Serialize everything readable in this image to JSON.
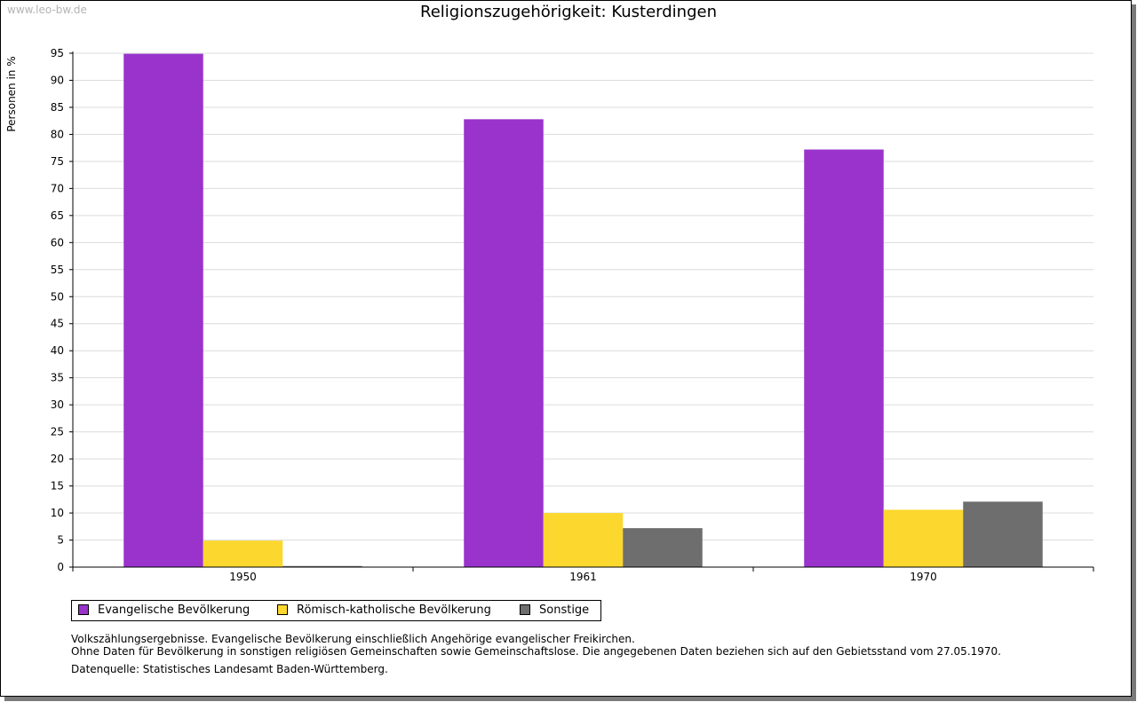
{
  "watermark": "www.leo-bw.de",
  "chart_data": {
    "type": "bar",
    "title": "Religionszugehörigkeit: Kusterdingen",
    "xlabel": "",
    "ylabel": "Personen in %",
    "ylim": [
      0,
      95
    ],
    "ytick_step": 5,
    "grid": true,
    "legend_position": "bottom-left",
    "categories": [
      "1950",
      "1961",
      "1970"
    ],
    "series": [
      {
        "name": "Evangelische Bevölkerung",
        "color": "#9933cc",
        "values": [
          94.9,
          82.8,
          77.2
        ]
      },
      {
        "name": "Römisch-katholische Bevölkerung",
        "color": "#fcd72e",
        "values": [
          4.9,
          10.0,
          10.6
        ]
      },
      {
        "name": "Sonstige",
        "color": "#6e6e6e",
        "values": [
          0.2,
          7.2,
          12.1
        ]
      }
    ]
  },
  "notes": {
    "line1": "Volkszählungsergebnisse. Evangelische Bevölkerung einschließlich Angehörige evangelischer Freikirchen.",
    "line2": "Ohne Daten für Bevölkerung in sonstigen religiösen Gemeinschaften sowie Gemeinschaftslose. Die angegebenen Daten beziehen sich auf den Gebietsstand vom 27.05.1970.",
    "source": "Datenquelle: Statistisches Landesamt Baden-Württemberg."
  }
}
